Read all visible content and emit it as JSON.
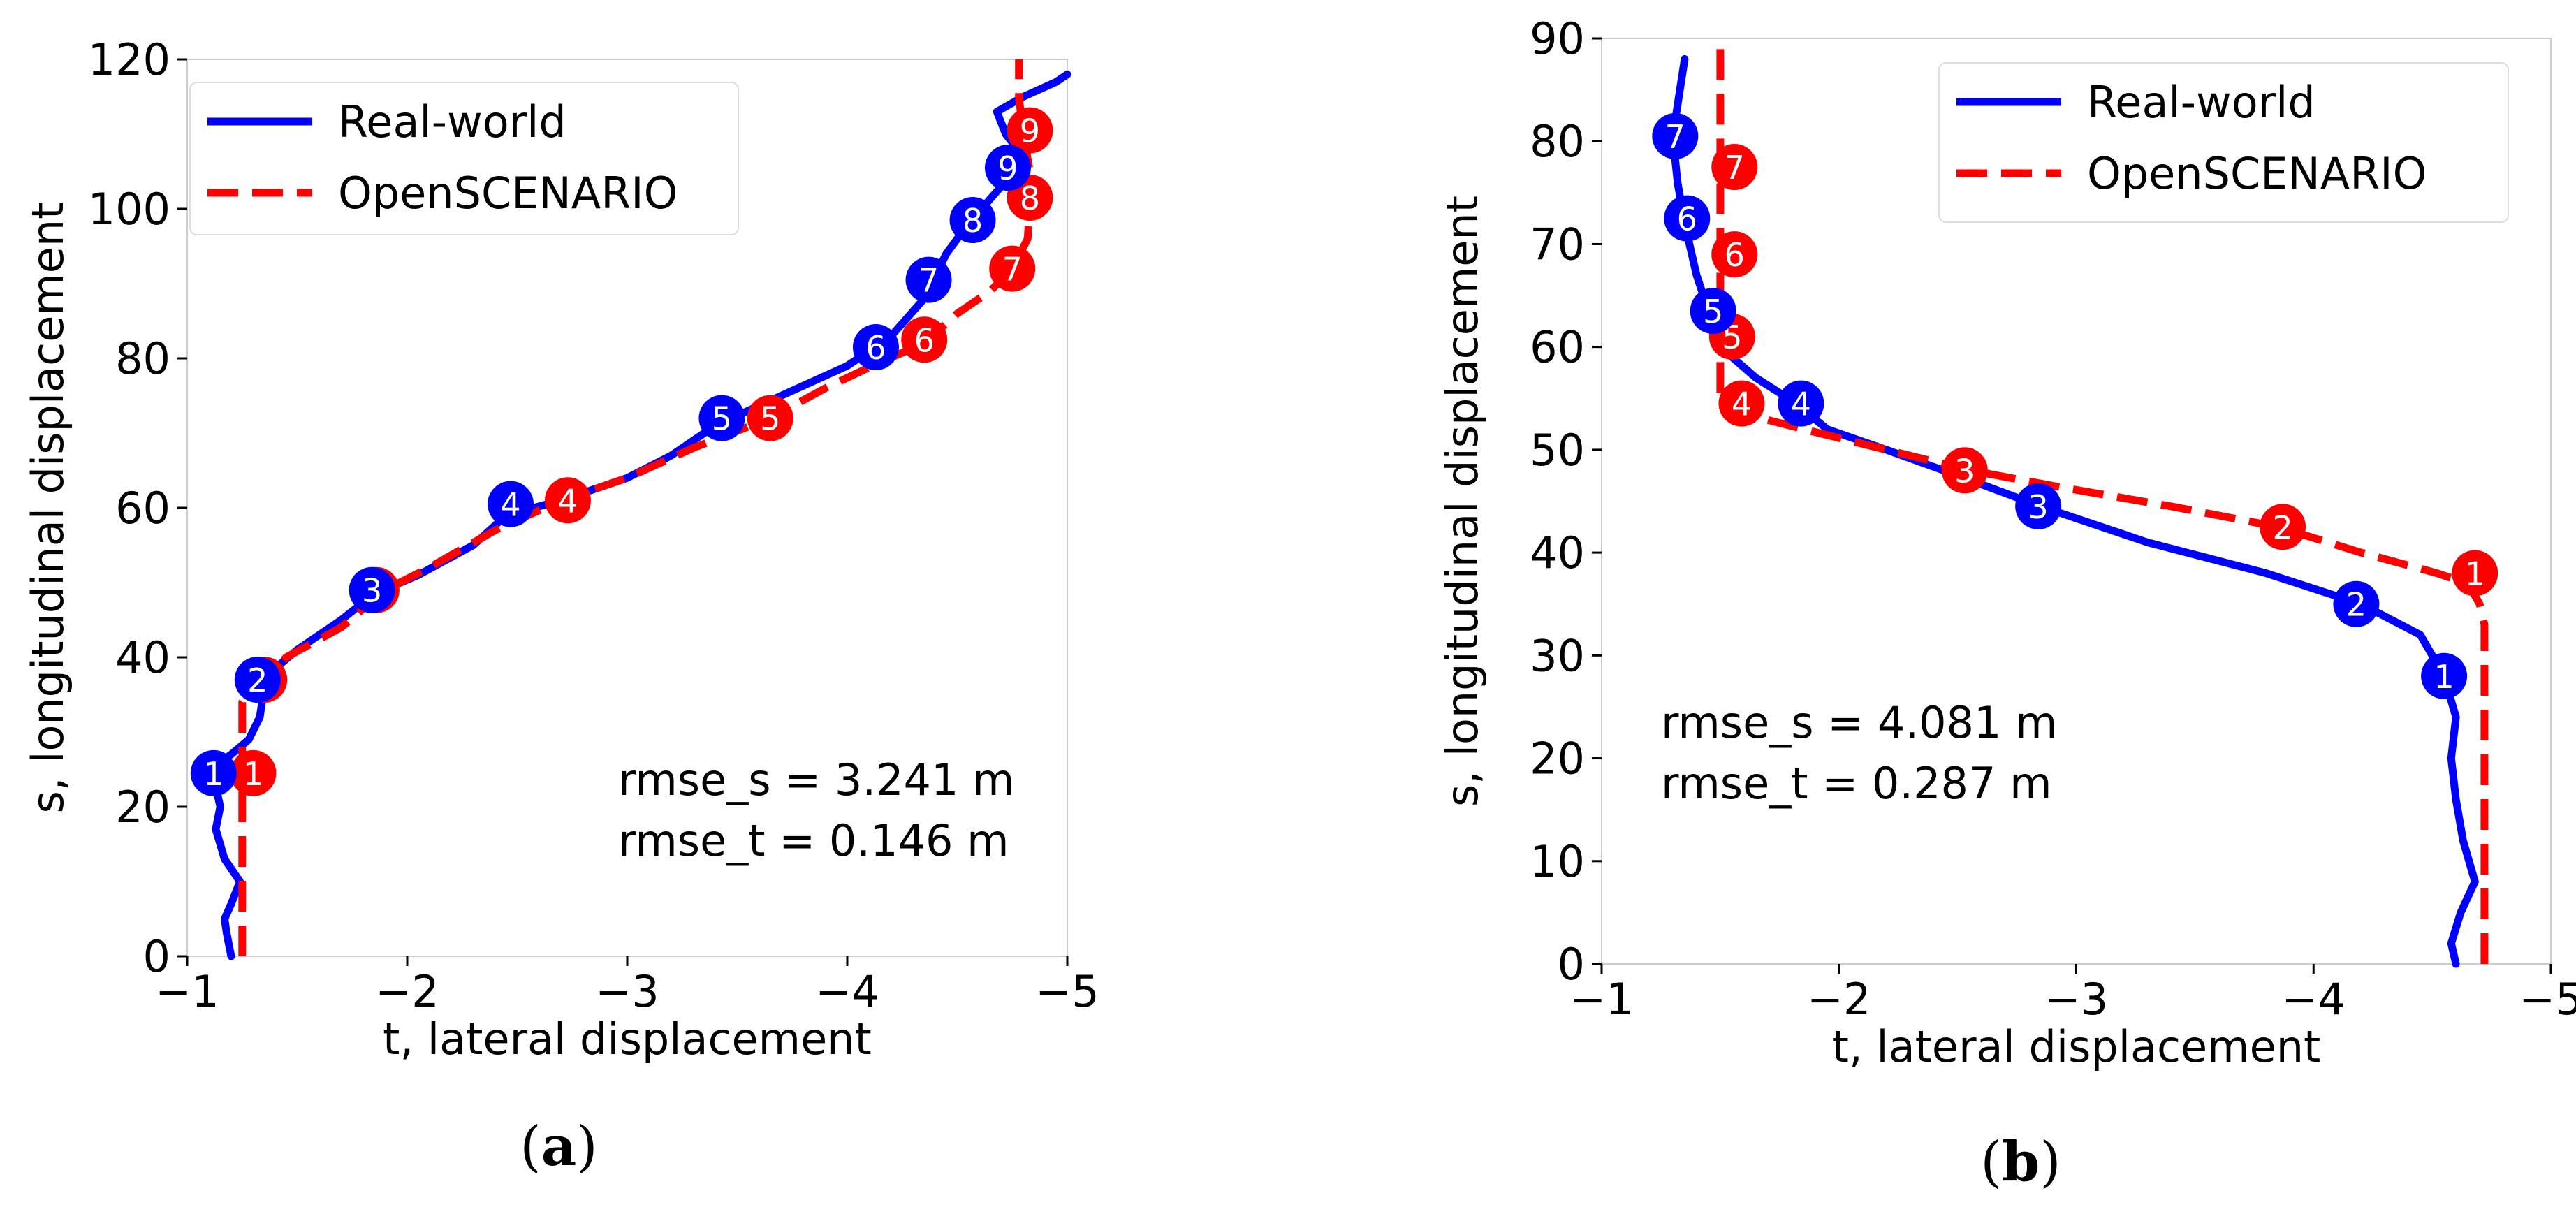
{
  "chart_data": [
    {
      "type": "line",
      "panel": "a",
      "caption": {
        "open": "(",
        "letter": "a",
        "close": ")"
      },
      "xlabel": "t, lateral displacement",
      "ylabel": "s, longitudinal displacement",
      "xlim": [
        -1,
        -5
      ],
      "ylim": [
        0,
        120
      ],
      "xticks": [
        -1,
        -2,
        -3,
        -4,
        -5
      ],
      "xtick_labels": [
        "−1",
        "−2",
        "−3",
        "−4",
        "−5"
      ],
      "yticks": [
        0,
        20,
        40,
        60,
        80,
        100,
        120
      ],
      "ytick_labels": [
        "0",
        "20",
        "40",
        "60",
        "80",
        "100",
        "120"
      ],
      "legend": {
        "position": "top-left",
        "entries": [
          "Real-world",
          "OpenSCENARIO"
        ]
      },
      "annotations": [
        "rmse_s = 3.241 m",
        "rmse_t = 0.146 m"
      ],
      "series": [
        {
          "name": "Real-world",
          "color": "#0000ff",
          "style": "solid",
          "points": [
            [
              -1.2,
              0
            ],
            [
              -1.18,
              3
            ],
            [
              -1.17,
              5
            ],
            [
              -1.2,
              7
            ],
            [
              -1.24,
              10
            ],
            [
              -1.17,
              13
            ],
            [
              -1.13,
              17
            ],
            [
              -1.15,
              20
            ],
            [
              -1.12,
              24
            ],
            [
              -1.15,
              26
            ],
            [
              -1.2,
              27
            ],
            [
              -1.28,
              29
            ],
            [
              -1.33,
              32
            ],
            [
              -1.35,
              36
            ],
            [
              -1.38,
              38
            ],
            [
              -1.5,
              41
            ],
            [
              -1.7,
              45
            ],
            [
              -1.85,
              48.5
            ],
            [
              -2.05,
              51
            ],
            [
              -2.3,
              55
            ],
            [
              -2.45,
              59
            ],
            [
              -2.7,
              61
            ],
            [
              -3.0,
              64
            ],
            [
              -3.2,
              67
            ],
            [
              -3.4,
              71
            ],
            [
              -3.7,
              75
            ],
            [
              -4.0,
              79
            ],
            [
              -4.2,
              83
            ],
            [
              -4.35,
              88
            ],
            [
              -4.4,
              91
            ],
            [
              -4.45,
              94
            ],
            [
              -4.55,
              98
            ],
            [
              -4.7,
              103
            ],
            [
              -4.8,
              107
            ],
            [
              -4.72,
              110
            ],
            [
              -4.68,
              113
            ],
            [
              -4.8,
              115
            ],
            [
              -4.95,
              117
            ],
            [
              -5.0,
              118
            ]
          ]
        },
        {
          "name": "OpenSCENARIO",
          "color": "#ff0000",
          "style": "dashed",
          "points": [
            [
              -1.25,
              0
            ],
            [
              -1.25,
              34
            ],
            [
              -1.35,
              37
            ],
            [
              -1.45,
              40
            ],
            [
              -1.7,
              44
            ],
            [
              -1.9,
              49
            ],
            [
              -2.1,
              52
            ],
            [
              -2.4,
              57
            ],
            [
              -2.7,
              61
            ],
            [
              -3.0,
              64
            ],
            [
              -3.3,
              68
            ],
            [
              -3.65,
              72
            ],
            [
              -3.9,
              76
            ],
            [
              -4.15,
              79.5
            ],
            [
              -4.35,
              82
            ],
            [
              -4.5,
              86
            ],
            [
              -4.65,
              89
            ],
            [
              -4.75,
              92
            ],
            [
              -4.82,
              96
            ],
            [
              -4.83,
              101
            ],
            [
              -4.83,
              105
            ],
            [
              -4.8,
              110
            ],
            [
              -4.78,
              115
            ],
            [
              -4.78,
              120
            ]
          ]
        }
      ],
      "markers": {
        "Real-world": [
          {
            "label": "1",
            "t": -1.12,
            "s": 24.5
          },
          {
            "label": "2",
            "t": -1.32,
            "s": 37
          },
          {
            "label": "3",
            "t": -1.84,
            "s": 49
          },
          {
            "label": "4",
            "t": -2.47,
            "s": 60.5
          },
          {
            "label": "5",
            "t": -3.43,
            "s": 72
          },
          {
            "label": "6",
            "t": -4.13,
            "s": 81.5
          },
          {
            "label": "7",
            "t": -4.37,
            "s": 90.5
          },
          {
            "label": "8",
            "t": -4.57,
            "s": 98.5
          },
          {
            "label": "9",
            "t": -4.73,
            "s": 105.5
          }
        ],
        "OpenSCENARIO": [
          {
            "label": "1",
            "t": -1.3,
            "s": 24.5
          },
          {
            "label": "2",
            "t": -1.35,
            "s": 37
          },
          {
            "label": "3",
            "t": -1.86,
            "s": 49
          },
          {
            "label": "4",
            "t": -2.73,
            "s": 61
          },
          {
            "label": "5",
            "t": -3.65,
            "s": 72
          },
          {
            "label": "6",
            "t": -4.35,
            "s": 82.5
          },
          {
            "label": "7",
            "t": -4.75,
            "s": 92
          },
          {
            "label": "8",
            "t": -4.83,
            "s": 101.5
          },
          {
            "label": "9",
            "t": -4.83,
            "s": 110.5
          }
        ]
      }
    },
    {
      "type": "line",
      "panel": "b",
      "caption": {
        "open": "(",
        "letter": "b",
        "close": ")"
      },
      "xlabel": "t, lateral displacement",
      "ylabel": "s, longitudinal displacement",
      "xlim": [
        -1,
        -5
      ],
      "ylim": [
        0,
        90
      ],
      "xticks": [
        -1,
        -2,
        -3,
        -4,
        -5
      ],
      "xtick_labels": [
        "−1",
        "−2",
        "−3",
        "−4",
        "−5"
      ],
      "yticks": [
        0,
        10,
        20,
        30,
        40,
        50,
        60,
        70,
        80,
        90
      ],
      "ytick_labels": [
        "0",
        "10",
        "20",
        "30",
        "40",
        "50",
        "60",
        "70",
        "80",
        "90"
      ],
      "legend": {
        "position": "top-right",
        "entries": [
          "Real-world",
          "OpenSCENARIO"
        ]
      },
      "annotations": [
        "rmse_s = 4.081 m",
        "rmse_t = 0.287 m"
      ],
      "series": [
        {
          "name": "Real-world",
          "color": "#0000ff",
          "style": "solid",
          "points": [
            [
              -4.6,
              0
            ],
            [
              -4.58,
              2
            ],
            [
              -4.62,
              5
            ],
            [
              -4.68,
              8
            ],
            [
              -4.63,
              12
            ],
            [
              -4.6,
              16
            ],
            [
              -4.58,
              20
            ],
            [
              -4.6,
              24
            ],
            [
              -4.55,
              28
            ],
            [
              -4.45,
              32
            ],
            [
              -4.2,
              35
            ],
            [
              -3.8,
              38
            ],
            [
              -3.3,
              41
            ],
            [
              -2.85,
              44.5
            ],
            [
              -2.5,
              47.5
            ],
            [
              -2.2,
              50
            ],
            [
              -1.95,
              52
            ],
            [
              -1.82,
              54.5
            ],
            [
              -1.65,
              57
            ],
            [
              -1.5,
              60
            ],
            [
              -1.45,
              63.5
            ],
            [
              -1.4,
              67
            ],
            [
              -1.35,
              72
            ],
            [
              -1.32,
              76
            ],
            [
              -1.3,
              80.5
            ],
            [
              -1.33,
              85
            ],
            [
              -1.35,
              88
            ]
          ]
        },
        {
          "name": "OpenSCENARIO",
          "color": "#ff0000",
          "style": "dashed",
          "points": [
            [
              -4.72,
              0
            ],
            [
              -4.72,
              20
            ],
            [
              -4.72,
              33
            ],
            [
              -4.7,
              35
            ],
            [
              -4.65,
              37
            ],
            [
              -4.52,
              38
            ],
            [
              -4.2,
              40
            ],
            [
              -3.85,
              42.5
            ],
            [
              -3.4,
              44.5
            ],
            [
              -2.9,
              46.5
            ],
            [
              -2.55,
              48
            ],
            [
              -2.2,
              50
            ],
            [
              -1.85,
              52
            ],
            [
              -1.6,
              53.5
            ],
            [
              -1.5,
              55
            ],
            [
              -1.5,
              60
            ],
            [
              -1.5,
              65
            ],
            [
              -1.5,
              70
            ],
            [
              -1.5,
              80
            ],
            [
              -1.5,
              90
            ]
          ]
        }
      ],
      "markers": {
        "Real-world": [
          {
            "label": "1",
            "t": -4.55,
            "s": 28
          },
          {
            "label": "2",
            "t": -4.18,
            "s": 35
          },
          {
            "label": "3",
            "t": -2.84,
            "s": 44.5
          },
          {
            "label": "4",
            "t": -1.84,
            "s": 54.5
          },
          {
            "label": "5",
            "t": -1.47,
            "s": 63.5
          },
          {
            "label": "6",
            "t": -1.36,
            "s": 72.5
          },
          {
            "label": "7",
            "t": -1.31,
            "s": 80.5
          }
        ],
        "OpenSCENARIO": [
          {
            "label": "1",
            "t": -4.68,
            "s": 38
          },
          {
            "label": "2",
            "t": -3.87,
            "s": 42.5
          },
          {
            "label": "3",
            "t": -2.53,
            "s": 48
          },
          {
            "label": "4",
            "t": -1.59,
            "s": 54.5
          },
          {
            "label": "5",
            "t": -1.55,
            "s": 61
          },
          {
            "label": "6",
            "t": -1.56,
            "s": 69
          },
          {
            "label": "7",
            "t": -1.56,
            "s": 77.5
          }
        ]
      }
    }
  ]
}
